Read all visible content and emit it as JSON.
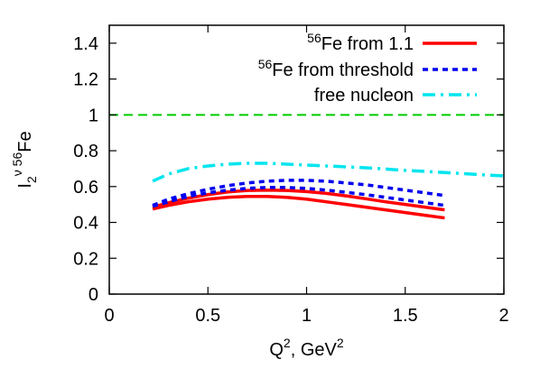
{
  "chart_data": {
    "type": "line",
    "xlabel": "Q²,  GeV²",
    "xlabel_parts": {
      "base": "Q",
      "sup": "2",
      "rest": ", GeV",
      "unit_sup": "2"
    },
    "ylabel": "I₂^ν ⁵⁶Fe",
    "ylabel_parts": {
      "base": "I",
      "sub": "2",
      "sup": "ν 56",
      "rest": "Fe"
    },
    "xlim": [
      0,
      2
    ],
    "ylim": [
      0,
      1.5
    ],
    "x_ticks": [
      0,
      0.5,
      1,
      1.5,
      2
    ],
    "x_tick_labels": [
      "0",
      "0.5",
      "1",
      "1.5",
      "2"
    ],
    "y_ticks": [
      0,
      0.2,
      0.4,
      0.6,
      0.8,
      1,
      1.2,
      1.4
    ],
    "y_tick_labels": [
      "0",
      "0.2",
      "0.4",
      "0.6",
      "0.8",
      "1",
      "1.2",
      "1.4"
    ],
    "grid": false,
    "legend_position": "top-right",
    "series": [
      {
        "name": "⁵⁶Fe  from 1.1",
        "name_parts": {
          "sup": "56",
          "text": "Fe  from 1.1"
        },
        "color": "#ff0000",
        "style": "solid",
        "curves": [
          {
            "x": [
              0.22,
              0.3,
              0.4,
              0.5,
              0.6,
              0.7,
              0.8,
              0.9,
              1.0,
              1.1,
              1.2,
              1.3,
              1.4,
              1.5,
              1.6,
              1.7
            ],
            "y": [
              0.475,
              0.495,
              0.515,
              0.53,
              0.54,
              0.545,
              0.545,
              0.54,
              0.53,
              0.515,
              0.5,
              0.485,
              0.47,
              0.455,
              0.44,
              0.425
            ]
          },
          {
            "x": [
              0.22,
              0.3,
              0.4,
              0.5,
              0.6,
              0.7,
              0.8,
              0.9,
              1.0,
              1.1,
              1.2,
              1.3,
              1.4,
              1.5,
              1.6,
              1.7
            ],
            "y": [
              0.485,
              0.51,
              0.535,
              0.555,
              0.57,
              0.578,
              0.58,
              0.578,
              0.572,
              0.562,
              0.548,
              0.532,
              0.515,
              0.5,
              0.485,
              0.47
            ]
          }
        ]
      },
      {
        "name": "⁵⁶Fe  from threshold",
        "name_parts": {
          "sup": "56",
          "text": "Fe  from threshold"
        },
        "color": "#0000ee",
        "style": "dotted",
        "curves": [
          {
            "x": [
              0.22,
              0.3,
              0.4,
              0.5,
              0.6,
              0.7,
              0.8,
              0.9,
              1.0,
              1.1,
              1.2,
              1.3,
              1.4,
              1.5,
              1.6,
              1.7
            ],
            "y": [
              0.49,
              0.515,
              0.545,
              0.565,
              0.58,
              0.59,
              0.595,
              0.595,
              0.59,
              0.58,
              0.568,
              0.555,
              0.54,
              0.525,
              0.51,
              0.495
            ]
          },
          {
            "x": [
              0.22,
              0.3,
              0.4,
              0.5,
              0.6,
              0.7,
              0.8,
              0.9,
              1.0,
              1.1,
              1.2,
              1.3,
              1.4,
              1.5,
              1.6,
              1.7
            ],
            "y": [
              0.495,
              0.53,
              0.56,
              0.585,
              0.605,
              0.62,
              0.63,
              0.635,
              0.635,
              0.63,
              0.62,
              0.61,
              0.595,
              0.58,
              0.565,
              0.55
            ]
          }
        ]
      },
      {
        "name": "free nucleon",
        "name_parts": {
          "sup": "",
          "text": "free nucleon"
        },
        "color": "#00e5ee",
        "style": "dash-dot",
        "curves": [
          {
            "x": [
              0.22,
              0.3,
              0.4,
              0.5,
              0.6,
              0.7,
              0.8,
              0.9,
              1.0,
              1.1,
              1.2,
              1.3,
              1.4,
              1.5,
              1.6,
              1.7,
              1.8,
              1.9,
              2.0
            ],
            "y": [
              0.63,
              0.67,
              0.7,
              0.715,
              0.725,
              0.73,
              0.73,
              0.725,
              0.72,
              0.715,
              0.71,
              0.705,
              0.698,
              0.69,
              0.685,
              0.678,
              0.672,
              0.665,
              0.66
            ]
          }
        ]
      }
    ],
    "reference_line": {
      "y": 1,
      "color": "#00cc00",
      "style": "dashed"
    }
  }
}
